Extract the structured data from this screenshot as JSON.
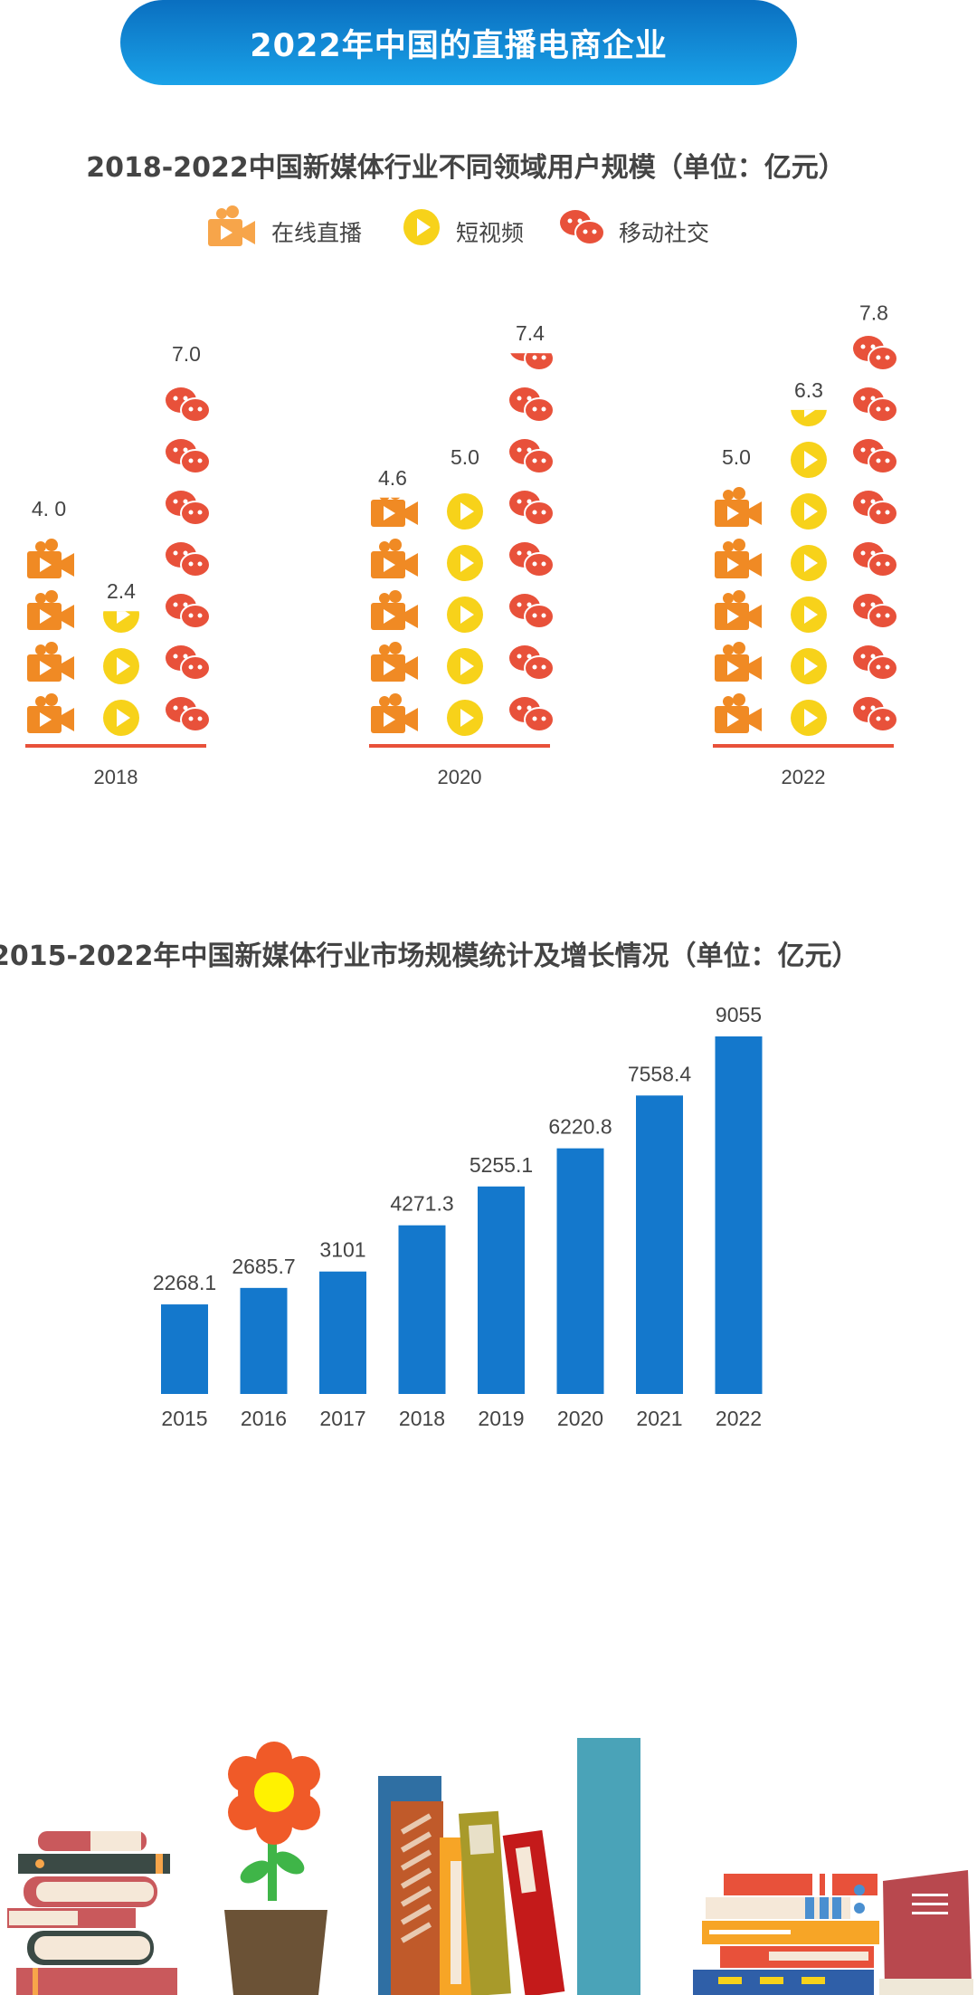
{
  "banner": {
    "title": "2022年中国的直播电商企业"
  },
  "chart_data": [
    {
      "type": "bar",
      "title": "2018-2022中国新媒体行业不同领域用户规模（单位：亿元）",
      "categories": [
        "2018",
        "2020",
        "2022"
      ],
      "series": [
        {
          "name": "在线直播",
          "icon": "video-camera-icon",
          "color": "#f08a24",
          "values": [
            4.0,
            4.6,
            5.0
          ],
          "labels": [
            "4. 0",
            "4.6",
            "5.0"
          ]
        },
        {
          "name": "短视频",
          "icon": "play-icon",
          "color": "#f7d21a",
          "values": [
            2.4,
            5.0,
            6.3
          ],
          "labels": [
            "2.4",
            "5.0",
            "6.3"
          ]
        },
        {
          "name": "移动社交",
          "icon": "chat-bubbles-icon",
          "color": "#e8513a",
          "values": [
            7.0,
            7.4,
            7.8
          ],
          "labels": [
            "7.0",
            "7.4",
            "7.8"
          ]
        }
      ]
    },
    {
      "type": "bar",
      "title": "2015-2022年中国新媒体行业市场规模统计及增长情况（单位：亿元）",
      "categories": [
        "2015",
        "2016",
        "2017",
        "2018",
        "2019",
        "2020",
        "2021",
        "2022"
      ],
      "values": [
        2268.1,
        2685.7,
        3101,
        4271.3,
        5255.1,
        6220.8,
        7558.4,
        9055
      ],
      "labels": [
        "2268.1",
        "2685.7",
        "3101",
        "4271.3",
        "5255.1",
        "6220.8",
        "7558.4",
        "9055"
      ],
      "color": "#1478cc",
      "ylim": [
        0,
        9055
      ]
    }
  ],
  "colors": {
    "banner": "#1488d8",
    "baseline": "#e8513a",
    "bar": "#1478cc"
  }
}
